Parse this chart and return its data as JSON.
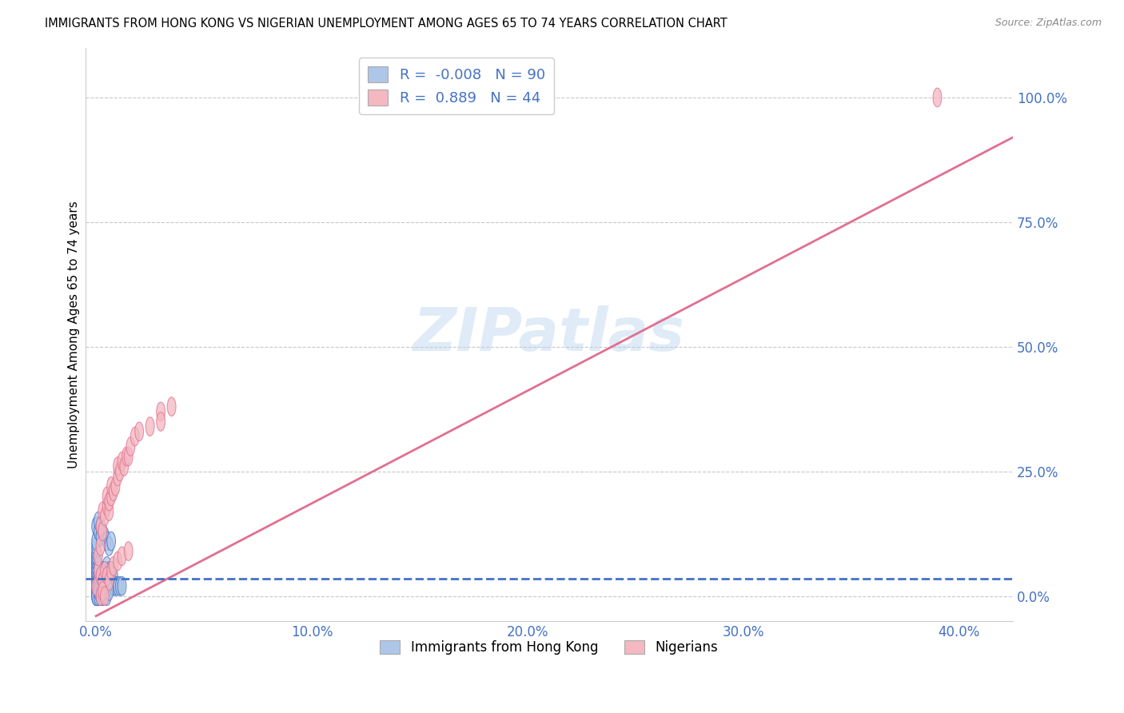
{
  "title": "IMMIGRANTS FROM HONG KONG VS NIGERIAN UNEMPLOYMENT AMONG AGES 65 TO 74 YEARS CORRELATION CHART",
  "source": "Source: ZipAtlas.com",
  "xlabel_ticks": [
    "0.0%",
    "10.0%",
    "20.0%",
    "30.0%",
    "40.0%"
  ],
  "ylabel_ticks": [
    "100.0%",
    "75.0%",
    "50.0%",
    "25.0%",
    "0.0%"
  ],
  "xlabel_tick_vals": [
    0.0,
    0.1,
    0.2,
    0.3,
    0.4
  ],
  "ylabel_tick_vals": [
    1.0,
    0.75,
    0.5,
    0.25,
    0.0
  ],
  "xlim": [
    -0.005,
    0.425
  ],
  "ylim": [
    -0.05,
    1.1
  ],
  "ylabel": "Unemployment Among Ages 65 to 74 years",
  "legend_series": [
    {
      "label": "Immigrants from Hong Kong",
      "color": "#aec6e8",
      "R": "-0.008",
      "N": "90"
    },
    {
      "label": "Nigerians",
      "color": "#f4b8c1",
      "R": "0.889",
      "N": "44"
    }
  ],
  "watermark": "ZIPatlas",
  "background_color": "#ffffff",
  "grid_color": "#c8c8c8",
  "axis_tick_color": "#4472c4",
  "blue_scatter_color": "#aec6e8",
  "blue_scatter_edge": "#4472c4",
  "pink_scatter_color": "#f4b8c1",
  "pink_scatter_edge": "#e07090",
  "blue_line_color": "#4472c4",
  "pink_line_color": "#e07090",
  "blue_points_x": [
    0.0005,
    0.001,
    0.001,
    0.002,
    0.002,
    0.002,
    0.003,
    0.003,
    0.003,
    0.004,
    0.004,
    0.004,
    0.005,
    0.005,
    0.005,
    0.006,
    0.006,
    0.007,
    0.007,
    0.008,
    0.0,
    0.0,
    0.0,
    0.0,
    0.0,
    0.0,
    0.0,
    0.0,
    0.0,
    0.0,
    0.0,
    0.0,
    0.0,
    0.0,
    0.0,
    0.0,
    0.0,
    0.0,
    0.0,
    0.0,
    0.001,
    0.001,
    0.001,
    0.001,
    0.001,
    0.002,
    0.002,
    0.002,
    0.003,
    0.003,
    0.004,
    0.005,
    0.005,
    0.006,
    0.007,
    0.008,
    0.009,
    0.01,
    0.011,
    0.012,
    0.0,
    0.0,
    0.001,
    0.001,
    0.001,
    0.002,
    0.002,
    0.003,
    0.003,
    0.004,
    0.0,
    0.001,
    0.001,
    0.002,
    0.002,
    0.003,
    0.004,
    0.005,
    0.006,
    0.007,
    0.0,
    0.0,
    0.001,
    0.001,
    0.002,
    0.002,
    0.003,
    0.004,
    0.005,
    0.006
  ],
  "blue_points_y": [
    0.02,
    0.03,
    0.04,
    0.03,
    0.04,
    0.05,
    0.03,
    0.04,
    0.05,
    0.03,
    0.04,
    0.05,
    0.03,
    0.04,
    0.06,
    0.04,
    0.05,
    0.03,
    0.05,
    0.04,
    0.0,
    0.01,
    0.01,
    0.02,
    0.02,
    0.03,
    0.03,
    0.04,
    0.04,
    0.05,
    0.05,
    0.06,
    0.06,
    0.07,
    0.07,
    0.08,
    0.08,
    0.09,
    0.1,
    0.11,
    0.02,
    0.03,
    0.04,
    0.05,
    0.06,
    0.02,
    0.03,
    0.04,
    0.02,
    0.03,
    0.02,
    0.02,
    0.03,
    0.02,
    0.03,
    0.02,
    0.02,
    0.02,
    0.02,
    0.02,
    0.0,
    0.01,
    0.0,
    0.01,
    0.02,
    0.0,
    0.01,
    0.0,
    0.01,
    0.02,
    0.14,
    0.13,
    0.15,
    0.12,
    0.14,
    0.13,
    0.12,
    0.11,
    0.1,
    0.11,
    0.0,
    0.0,
    0.0,
    0.01,
    0.0,
    0.01,
    0.0,
    0.01,
    0.0,
    0.01
  ],
  "pink_points_x": [
    0.0,
    0.001,
    0.001,
    0.002,
    0.002,
    0.003,
    0.003,
    0.004,
    0.005,
    0.005,
    0.006,
    0.006,
    0.007,
    0.007,
    0.008,
    0.009,
    0.01,
    0.01,
    0.011,
    0.012,
    0.013,
    0.014,
    0.015,
    0.016,
    0.018,
    0.02,
    0.025,
    0.03,
    0.03,
    0.035,
    0.002,
    0.003,
    0.004,
    0.005,
    0.006,
    0.007,
    0.008,
    0.01,
    0.012,
    0.015,
    0.002,
    0.003,
    0.004,
    0.39
  ],
  "pink_points_y": [
    0.02,
    0.05,
    0.08,
    0.1,
    0.14,
    0.13,
    0.17,
    0.16,
    0.18,
    0.2,
    0.17,
    0.19,
    0.2,
    0.22,
    0.21,
    0.22,
    0.24,
    0.26,
    0.25,
    0.27,
    0.26,
    0.28,
    0.28,
    0.3,
    0.32,
    0.33,
    0.34,
    0.37,
    0.35,
    0.38,
    0.04,
    0.03,
    0.05,
    0.04,
    0.03,
    0.05,
    0.06,
    0.07,
    0.08,
    0.09,
    0.0,
    0.01,
    0.0,
    1.0
  ],
  "pink_line_x0": 0.0,
  "pink_line_y0": -0.04,
  "pink_line_x1": 0.425,
  "pink_line_y1": 0.92,
  "blue_line_y": 0.035
}
